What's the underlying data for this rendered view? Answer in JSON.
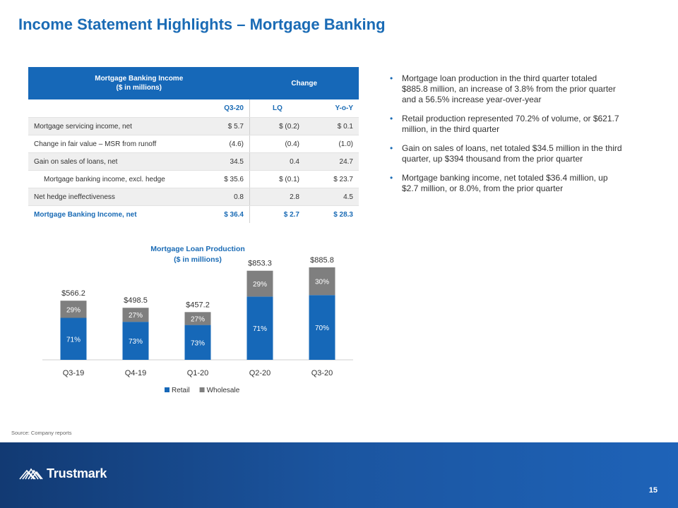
{
  "title": "Income Statement Highlights – Mortgage Banking",
  "table": {
    "header_left_line1": "Mortgage Banking Income",
    "header_left_line2": "($ in millions)",
    "header_right": "Change",
    "columns": [
      "Q3-20",
      "LQ",
      "Y-o-Y"
    ],
    "rows": [
      {
        "label": "Mortgage servicing income, net",
        "q320": "$ 5.7",
        "lq": "$ (0.2)",
        "yoy": "$ 0.1"
      },
      {
        "label": "Change in fair value – MSR from runoff",
        "q320": "(4.6)",
        "lq": "(0.4)",
        "yoy": "(1.0)"
      },
      {
        "label": "Gain on sales of loans, net",
        "q320": "34.5",
        "lq": "0.4",
        "yoy": "24.7"
      },
      {
        "label": "Mortgage banking income, excl. hedge",
        "q320": "$ 35.6",
        "lq": "$ (0.1)",
        "yoy": "$ 23.7"
      },
      {
        "label": "Net hedge ineffectiveness",
        "q320": "0.8",
        "lq": "2.8",
        "yoy": "4.5"
      },
      {
        "label": "Mortgage Banking Income, net",
        "q320": "$ 36.4",
        "lq": "$ 2.7",
        "yoy": "$ 28.3"
      }
    ]
  },
  "bullets": [
    "Mortgage loan production in the third quarter totaled $885.8 million, an increase of 3.8% from the prior quarter and a 56.5% increase year-over-year",
    "Retail production represented 70.2% of volume, or $621.7 million, in the third quarter",
    "Gain on sales of loans, net totaled $34.5 million in the third quarter, up $394 thousand from the prior quarter",
    "Mortgage banking income, net totaled $36.4 million, up $2.7 million, or 8.0%, from the prior quarter"
  ],
  "bullet_marker": "•",
  "chart_data": {
    "type": "bar",
    "stacked": true,
    "title": "Mortgage Loan Production",
    "subtitle": "($ in millions)",
    "categories": [
      "Q3-19",
      "Q4-19",
      "Q1-20",
      "Q2-20",
      "Q3-20"
    ],
    "totals": [
      566.2,
      498.5,
      457.2,
      853.3,
      885.8
    ],
    "total_labels": [
      "$566.2",
      "$498.5",
      "$457.2",
      "$853.3",
      "$885.8"
    ],
    "series": [
      {
        "name": "Retail",
        "color": "#1668b8",
        "percent": [
          71,
          73,
          73,
          71,
          70
        ],
        "labels": [
          "71%",
          "73%",
          "73%",
          "71%",
          "70%"
        ]
      },
      {
        "name": "Wholesale",
        "color": "#7f7f7f",
        "percent": [
          29,
          27,
          27,
          29,
          30
        ],
        "labels": [
          "29%",
          "27%",
          "27%",
          "29%",
          "30%"
        ]
      }
    ],
    "ylim": [
      0,
      1000
    ],
    "legend_position": "bottom"
  },
  "source": "Source: Company reports",
  "footer": {
    "logo_text": "Trustmark",
    "page_number": "15"
  }
}
